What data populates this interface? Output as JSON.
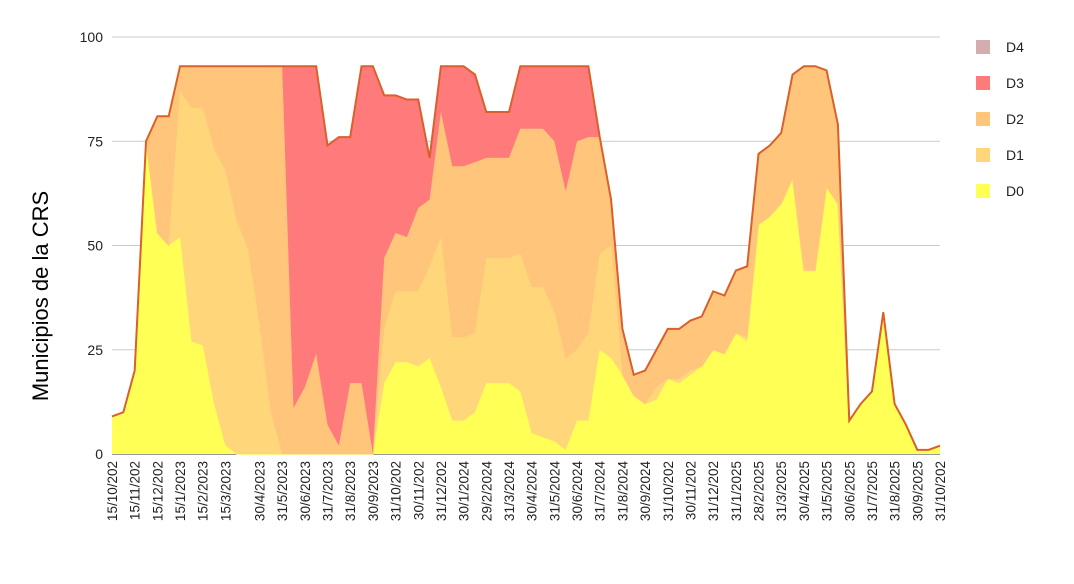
{
  "chart_data": {
    "type": "area",
    "stacked": true,
    "title": "",
    "xlabel": "",
    "ylabel": "Municipios de la CRS",
    "ylim": [
      0,
      100
    ],
    "yticks": [
      0,
      25,
      50,
      75,
      100
    ],
    "grid": true,
    "legend_position": "right",
    "x": [
      "15/10/2022",
      "31/10/2022",
      "15/11/2022",
      "30/11/2022",
      "15/12/2022",
      "31/12/2022",
      "15/1/2023",
      "31/1/2023",
      "15/2/2023",
      "28/2/2023",
      "15/3/2023",
      "31/3/2023",
      "15/4/2023",
      "30/4/2023",
      "15/5/2023",
      "31/5/2023",
      "15/6/2023",
      "30/6/2023",
      "15/7/2023",
      "31/7/2023",
      "15/8/2023",
      "31/8/2023",
      "15/9/2023",
      "30/9/2023",
      "15/10/2023",
      "31/10/2023",
      "15/11/2023",
      "30/11/2023",
      "15/12/2023",
      "31/12/2023",
      "15/1/2024",
      "30/1/2024",
      "15/2/2024",
      "29/2/2024",
      "15/3/2024",
      "31/3/2024",
      "15/4/2024",
      "30/4/2024",
      "15/5/2024",
      "31/5/2024",
      "15/6/2024",
      "30/6/2024",
      "15/7/2024",
      "31/7/2024",
      "15/8/2024",
      "31/8/2024",
      "15/9/2024",
      "30/9/2024",
      "15/10/2024",
      "31/10/2024",
      "15/11/2024",
      "30/11/2024",
      "15/12/2024",
      "31/12/2024",
      "15/1/2025",
      "31/1/2025",
      "15/2/2025",
      "28/2/2025",
      "15/3/2025",
      "31/3/2025",
      "15/4/2025",
      "30/4/2025",
      "15/5/2025",
      "31/5/2025",
      "15/6/2025",
      "30/6/2025",
      "15/7/2025",
      "31/7/2025",
      "15/8/2025",
      "31/8/2025",
      "15/9/2025",
      "30/9/2025",
      "15/10/2025",
      "31/10/2025"
    ],
    "x_tick_labels": [
      "15/10/202",
      "15/11/202",
      "15/12/202",
      "15/1/2023",
      "15/2/2023",
      "15/3/2023",
      "30/4/2023",
      "31/5/2023",
      "30/6/2023",
      "31/7/2023",
      "31/8/2023",
      "30/9/2023",
      "31/10/202",
      "30/11/202",
      "31/12/202",
      "30/1/2024",
      "29/2/2024",
      "31/3/2024",
      "30/4/2024",
      "31/5/2024",
      "30/6/2024",
      "31/7/2024",
      "31/8/2024",
      "30/9/2024",
      "31/10/202",
      "30/11/202",
      "31/12/202",
      "31/1/2025",
      "28/2/2025",
      "31/3/2025",
      "30/4/2025",
      "31/5/2025",
      "30/6/2025",
      "31/7/2025",
      "31/8/2025",
      "30/9/2025",
      "31/10/202"
    ],
    "x_tick_indices": [
      0,
      2,
      4,
      6,
      8,
      10,
      13,
      15,
      17,
      19,
      21,
      23,
      25,
      27,
      29,
      31,
      33,
      35,
      37,
      39,
      41,
      43,
      45,
      47,
      49,
      51,
      53,
      55,
      57,
      59,
      61,
      63,
      65,
      67,
      69,
      71,
      73
    ],
    "series": [
      {
        "name": "D0",
        "color": "#ffff55",
        "values": [
          9,
          10,
          20,
          75,
          53,
          50,
          52,
          27,
          26,
          12,
          2,
          0,
          0,
          0,
          0,
          0,
          0,
          0,
          0,
          0,
          0,
          0,
          0,
          0,
          17,
          22,
          22,
          21,
          23,
          16,
          8,
          8,
          10,
          17,
          17,
          17,
          15,
          5,
          4,
          3,
          1,
          8,
          8,
          25,
          23,
          19,
          14,
          12,
          13,
          18,
          17,
          19,
          21,
          25,
          24,
          29,
          27,
          55,
          57,
          60,
          66,
          44,
          44,
          64,
          60,
          8,
          12,
          15,
          34,
          12,
          7,
          1,
          1,
          2
        ]
      },
      {
        "name": "D1",
        "color": "#ffd77a",
        "values": [
          0,
          0,
          0,
          0,
          0,
          0,
          35,
          56,
          57,
          61,
          66,
          56,
          49,
          31,
          10,
          0,
          0,
          0,
          0,
          0,
          0,
          0,
          0,
          0,
          13,
          17,
          17,
          18,
          22,
          36,
          20,
          20,
          19,
          30,
          30,
          30,
          33,
          35,
          36,
          31,
          22,
          17,
          21,
          23,
          27,
          0,
          0,
          0,
          3,
          0,
          1,
          1,
          0,
          0,
          0,
          0,
          1,
          0,
          0,
          0,
          0,
          0,
          0,
          0,
          0,
          0,
          0,
          0,
          0,
          0,
          0,
          0,
          0,
          0
        ]
      },
      {
        "name": "D2",
        "color": "#ffc57a",
        "values": [
          0,
          0,
          0,
          0,
          28,
          31,
          6,
          10,
          10,
          20,
          25,
          37,
          44,
          62,
          83,
          93,
          11,
          16,
          24,
          7,
          2,
          17,
          17,
          0,
          17,
          14,
          13,
          20,
          16,
          30,
          41,
          41,
          41,
          24,
          24,
          24,
          30,
          38,
          38,
          41,
          40,
          50,
          47,
          28,
          11,
          11,
          5,
          8,
          9,
          12,
          12,
          12,
          12,
          14,
          14,
          15,
          17,
          17,
          17,
          17,
          25,
          49,
          49,
          28,
          19,
          0,
          0,
          0,
          0,
          0,
          0,
          0,
          0,
          0
        ]
      },
      {
        "name": "D3",
        "color": "#ff7b7b",
        "values": [
          0,
          0,
          0,
          0,
          0,
          0,
          0,
          0,
          0,
          0,
          0,
          0,
          0,
          0,
          0,
          0,
          82,
          77,
          69,
          67,
          74,
          59,
          76,
          93,
          39,
          33,
          33,
          26,
          10,
          11,
          24,
          24,
          21,
          11,
          11,
          11,
          15,
          15,
          15,
          18,
          30,
          18,
          17,
          0,
          0,
          0,
          0,
          0,
          0,
          0,
          0,
          0,
          0,
          0,
          0,
          0,
          0,
          0,
          0,
          0,
          0,
          0,
          0,
          0,
          0,
          0,
          0,
          0,
          0,
          0,
          0,
          0,
          0,
          0
        ]
      },
      {
        "name": "D4",
        "color": "#d4aeae",
        "values": [
          0,
          0,
          0,
          0,
          0,
          0,
          0,
          0,
          0,
          0,
          0,
          0,
          0,
          0,
          0,
          0,
          0,
          0,
          0,
          0,
          0,
          0,
          0,
          0,
          0,
          0,
          0,
          0,
          0,
          0,
          0,
          0,
          0,
          0,
          0,
          0,
          0,
          0,
          0,
          0,
          0,
          0,
          0,
          0,
          0,
          0,
          0,
          0,
          0,
          0,
          0,
          0,
          0,
          0,
          0,
          0,
          0,
          0,
          0,
          0,
          0,
          0,
          0,
          0,
          0,
          0,
          0,
          0,
          0,
          0,
          0,
          0,
          0,
          0
        ]
      }
    ],
    "total_line_color": "#d9602a"
  }
}
